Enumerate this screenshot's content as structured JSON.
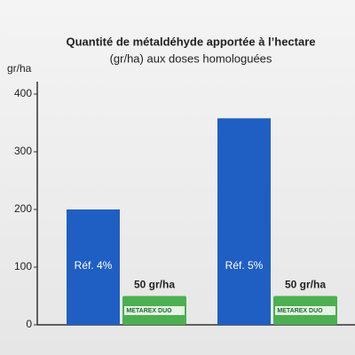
{
  "chart_data": {
    "type": "bar",
    "title": "Quantité de métaldéhyde apportée à l’hectare",
    "subtitle": "(gr/ha) aux doses homologuées",
    "y_label": "gr/ha",
    "categories": [
      null,
      null
    ],
    "series": [
      {
        "color": "#1f5fc4",
        "labels": [
          "Réf. 4%",
          "Réf. 5%"
        ],
        "values": [
          200,
          358
        ]
      },
      {
        "name": "METAREX DUO",
        "color": "#4caf50",
        "values": [
          50,
          50
        ],
        "value_labels": [
          "50 gr/ha",
          "50 gr/ha"
        ]
      }
    ],
    "ylim": [
      0,
      400
    ],
    "yticks": [
      0,
      100,
      200,
      300,
      400
    ]
  }
}
